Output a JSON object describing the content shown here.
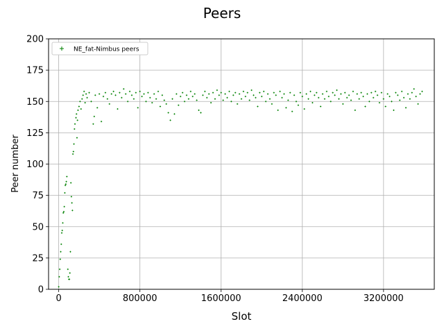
{
  "chart_data": {
    "type": "scatter",
    "title": "Peers",
    "xlabel": "Slot",
    "ylabel": "Peer number",
    "xlim": [
      -100000,
      3700000
    ],
    "ylim": [
      0,
      200
    ],
    "xticks": [
      0,
      800000,
      1600000,
      2400000,
      3200000
    ],
    "xtick_labels": [
      "0",
      "800000",
      "1600000",
      "2400000",
      "3200000"
    ],
    "yticks": [
      0,
      25,
      50,
      75,
      100,
      125,
      150,
      175,
      200
    ],
    "ytick_labels": [
      "0",
      "25",
      "50",
      "75",
      "100",
      "125",
      "150",
      "175",
      "200"
    ],
    "grid": true,
    "legend_position": "upper left",
    "series": [
      {
        "name": "NE_fat-Nimbus peers",
        "color": "#008000",
        "marker": "plus",
        "points": [
          [
            0,
            2
          ],
          [
            5000,
            10
          ],
          [
            10000,
            16
          ],
          [
            15000,
            24
          ],
          [
            20000,
            30
          ],
          [
            25000,
            36
          ],
          [
            30000,
            45
          ],
          [
            35000,
            47
          ],
          [
            40000,
            53
          ],
          [
            45000,
            61
          ],
          [
            50000,
            62
          ],
          [
            55000,
            66
          ],
          [
            60000,
            77
          ],
          [
            65000,
            83
          ],
          [
            70000,
            84
          ],
          [
            75000,
            86
          ],
          [
            80000,
            90
          ],
          [
            90000,
            16
          ],
          [
            95000,
            10
          ],
          [
            100000,
            8
          ],
          [
            105000,
            8
          ],
          [
            110000,
            13
          ],
          [
            115000,
            30
          ],
          [
            120000,
            85
          ],
          [
            125000,
            74
          ],
          [
            130000,
            69
          ],
          [
            135000,
            63
          ],
          [
            140000,
            108
          ],
          [
            145000,
            110
          ],
          [
            150000,
            116
          ],
          [
            155000,
            128
          ],
          [
            160000,
            132
          ],
          [
            170000,
            137
          ],
          [
            175000,
            140
          ],
          [
            180000,
            121
          ],
          [
            185000,
            135
          ],
          [
            190000,
            143
          ],
          [
            200000,
            146
          ],
          [
            210000,
            150
          ],
          [
            220000,
            144
          ],
          [
            230000,
            152
          ],
          [
            240000,
            155
          ],
          [
            250000,
            158
          ],
          [
            260000,
            149
          ],
          [
            270000,
            156
          ],
          [
            280000,
            153
          ],
          [
            300000,
            157
          ],
          [
            320000,
            150
          ],
          [
            340000,
            132
          ],
          [
            350000,
            138
          ],
          [
            360000,
            155
          ],
          [
            380000,
            145
          ],
          [
            400000,
            156
          ],
          [
            420000,
            134
          ],
          [
            440000,
            154
          ],
          [
            460000,
            157
          ],
          [
            480000,
            152
          ],
          [
            500000,
            148
          ],
          [
            520000,
            156
          ],
          [
            540000,
            158
          ],
          [
            560000,
            155
          ],
          [
            580000,
            144
          ],
          [
            600000,
            157
          ],
          [
            620000,
            153
          ],
          [
            640000,
            160
          ],
          [
            660000,
            156
          ],
          [
            680000,
            150
          ],
          [
            700000,
            158
          ],
          [
            720000,
            155
          ],
          [
            740000,
            152
          ],
          [
            760000,
            157
          ],
          [
            780000,
            145
          ],
          [
            800000,
            158
          ],
          [
            820000,
            154
          ],
          [
            840000,
            156
          ],
          [
            860000,
            150
          ],
          [
            880000,
            157
          ],
          [
            900000,
            153
          ],
          [
            920000,
            149
          ],
          [
            940000,
            156
          ],
          [
            960000,
            152
          ],
          [
            980000,
            158
          ],
          [
            1000000,
            146
          ],
          [
            1020000,
            155
          ],
          [
            1040000,
            151
          ],
          [
            1060000,
            148
          ],
          [
            1080000,
            141
          ],
          [
            1100000,
            135
          ],
          [
            1120000,
            152
          ],
          [
            1140000,
            140
          ],
          [
            1160000,
            156
          ],
          [
            1180000,
            147
          ],
          [
            1200000,
            154
          ],
          [
            1220000,
            157
          ],
          [
            1240000,
            150
          ],
          [
            1260000,
            155
          ],
          [
            1280000,
            152
          ],
          [
            1300000,
            158
          ],
          [
            1320000,
            154
          ],
          [
            1340000,
            156
          ],
          [
            1360000,
            151
          ],
          [
            1380000,
            143
          ],
          [
            1400000,
            141
          ],
          [
            1420000,
            155
          ],
          [
            1440000,
            158
          ],
          [
            1460000,
            153
          ],
          [
            1480000,
            156
          ],
          [
            1500000,
            149
          ],
          [
            1520000,
            157
          ],
          [
            1540000,
            152
          ],
          [
            1560000,
            159
          ],
          [
            1580000,
            155
          ],
          [
            1600000,
            157
          ],
          [
            1620000,
            151
          ],
          [
            1640000,
            156
          ],
          [
            1660000,
            153
          ],
          [
            1680000,
            158
          ],
          [
            1700000,
            150
          ],
          [
            1720000,
            155
          ],
          [
            1740000,
            157
          ],
          [
            1760000,
            148
          ],
          [
            1780000,
            156
          ],
          [
            1800000,
            152
          ],
          [
            1820000,
            158
          ],
          [
            1840000,
            154
          ],
          [
            1860000,
            157
          ],
          [
            1880000,
            151
          ],
          [
            1900000,
            159
          ],
          [
            1920000,
            155
          ],
          [
            1940000,
            153
          ],
          [
            1960000,
            146
          ],
          [
            1980000,
            157
          ],
          [
            2000000,
            154
          ],
          [
            2020000,
            158
          ],
          [
            2040000,
            150
          ],
          [
            2060000,
            156
          ],
          [
            2080000,
            152
          ],
          [
            2100000,
            148
          ],
          [
            2120000,
            157
          ],
          [
            2140000,
            155
          ],
          [
            2160000,
            143
          ],
          [
            2180000,
            158
          ],
          [
            2200000,
            153
          ],
          [
            2220000,
            156
          ],
          [
            2240000,
            145
          ],
          [
            2260000,
            151
          ],
          [
            2280000,
            157
          ],
          [
            2300000,
            142
          ],
          [
            2320000,
            155
          ],
          [
            2340000,
            150
          ],
          [
            2360000,
            147
          ],
          [
            2380000,
            157
          ],
          [
            2400000,
            154
          ],
          [
            2420000,
            144
          ],
          [
            2440000,
            156
          ],
          [
            2460000,
            152
          ],
          [
            2480000,
            158
          ],
          [
            2500000,
            149
          ],
          [
            2520000,
            155
          ],
          [
            2540000,
            157
          ],
          [
            2560000,
            153
          ],
          [
            2580000,
            146
          ],
          [
            2600000,
            156
          ],
          [
            2620000,
            152
          ],
          [
            2640000,
            158
          ],
          [
            2660000,
            154
          ],
          [
            2680000,
            150
          ],
          [
            2700000,
            157
          ],
          [
            2720000,
            155
          ],
          [
            2740000,
            159
          ],
          [
            2760000,
            152
          ],
          [
            2780000,
            156
          ],
          [
            2800000,
            148
          ],
          [
            2820000,
            157
          ],
          [
            2840000,
            153
          ],
          [
            2860000,
            155
          ],
          [
            2880000,
            151
          ],
          [
            2900000,
            158
          ],
          [
            2920000,
            143
          ],
          [
            2940000,
            156
          ],
          [
            2960000,
            152
          ],
          [
            2980000,
            157
          ],
          [
            3000000,
            154
          ],
          [
            3020000,
            146
          ],
          [
            3040000,
            156
          ],
          [
            3060000,
            150
          ],
          [
            3080000,
            157
          ],
          [
            3100000,
            153
          ],
          [
            3120000,
            158
          ],
          [
            3140000,
            155
          ],
          [
            3160000,
            149
          ],
          [
            3180000,
            157
          ],
          [
            3200000,
            152
          ],
          [
            3220000,
            146
          ],
          [
            3240000,
            156
          ],
          [
            3260000,
            154
          ],
          [
            3280000,
            150
          ],
          [
            3300000,
            143
          ],
          [
            3320000,
            157
          ],
          [
            3340000,
            155
          ],
          [
            3360000,
            151
          ],
          [
            3380000,
            158
          ],
          [
            3400000,
            153
          ],
          [
            3420000,
            145
          ],
          [
            3440000,
            156
          ],
          [
            3460000,
            152
          ],
          [
            3480000,
            157
          ],
          [
            3500000,
            160
          ],
          [
            3520000,
            154
          ],
          [
            3540000,
            148
          ],
          [
            3560000,
            156
          ],
          [
            3580000,
            158
          ]
        ]
      }
    ]
  }
}
